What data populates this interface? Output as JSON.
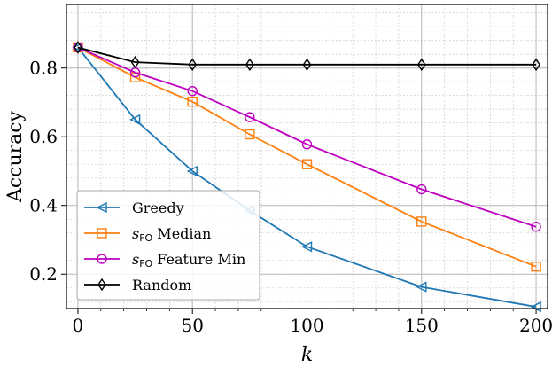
{
  "chart_data": {
    "type": "line",
    "title": "",
    "xlabel": "k",
    "ylabel": "Accuracy",
    "xlim": [
      -5,
      205
    ],
    "ylim": [
      0.1,
      0.985
    ],
    "xticks": [
      0,
      50,
      100,
      150,
      200
    ],
    "yticks": [
      0.2,
      0.4,
      0.6,
      0.8
    ],
    "xtick_labels": [
      "0",
      "50",
      "100",
      "150",
      "200"
    ],
    "ytick_labels": [
      "0.2",
      "0.4",
      "0.6",
      "0.8"
    ],
    "x_minor_step": 10,
    "y_minor_step": 0.04,
    "grid": true,
    "legend_position": "lower-left",
    "series": [
      {
        "name": "Greedy",
        "label_main": "Greedy",
        "label_sub": "",
        "label_rest": "",
        "marker": "triangle-left",
        "color": "#1f77b4",
        "x": [
          0,
          25,
          50,
          75,
          100,
          150,
          200
        ],
        "values": [
          0.86,
          0.65,
          0.5,
          0.385,
          0.28,
          0.163,
          0.105
        ]
      },
      {
        "name": "sFO Median",
        "label_main": "s",
        "label_sub": "FO",
        "label_rest": " Median",
        "marker": "square",
        "color": "#ff7f0e",
        "x": [
          0,
          25,
          50,
          75,
          100,
          150,
          200
        ],
        "values": [
          0.86,
          0.773,
          0.702,
          0.607,
          0.52,
          0.353,
          0.222
        ]
      },
      {
        "name": "sFO Feature Min",
        "label_main": "s",
        "label_sub": "FO",
        "label_rest": " Feature Min",
        "marker": "circle",
        "color": "#c000c0",
        "x": [
          0,
          25,
          50,
          75,
          100,
          150,
          200
        ],
        "values": [
          0.86,
          0.787,
          0.733,
          0.657,
          0.578,
          0.447,
          0.338
        ]
      },
      {
        "name": "Random",
        "label_main": "Random",
        "label_sub": "",
        "label_rest": "",
        "marker": "diamond",
        "color": "#000000",
        "x": [
          0,
          25,
          50,
          75,
          100,
          150,
          200
        ],
        "values": [
          0.86,
          0.817,
          0.81,
          0.81,
          0.81,
          0.81,
          0.81
        ]
      }
    ]
  }
}
